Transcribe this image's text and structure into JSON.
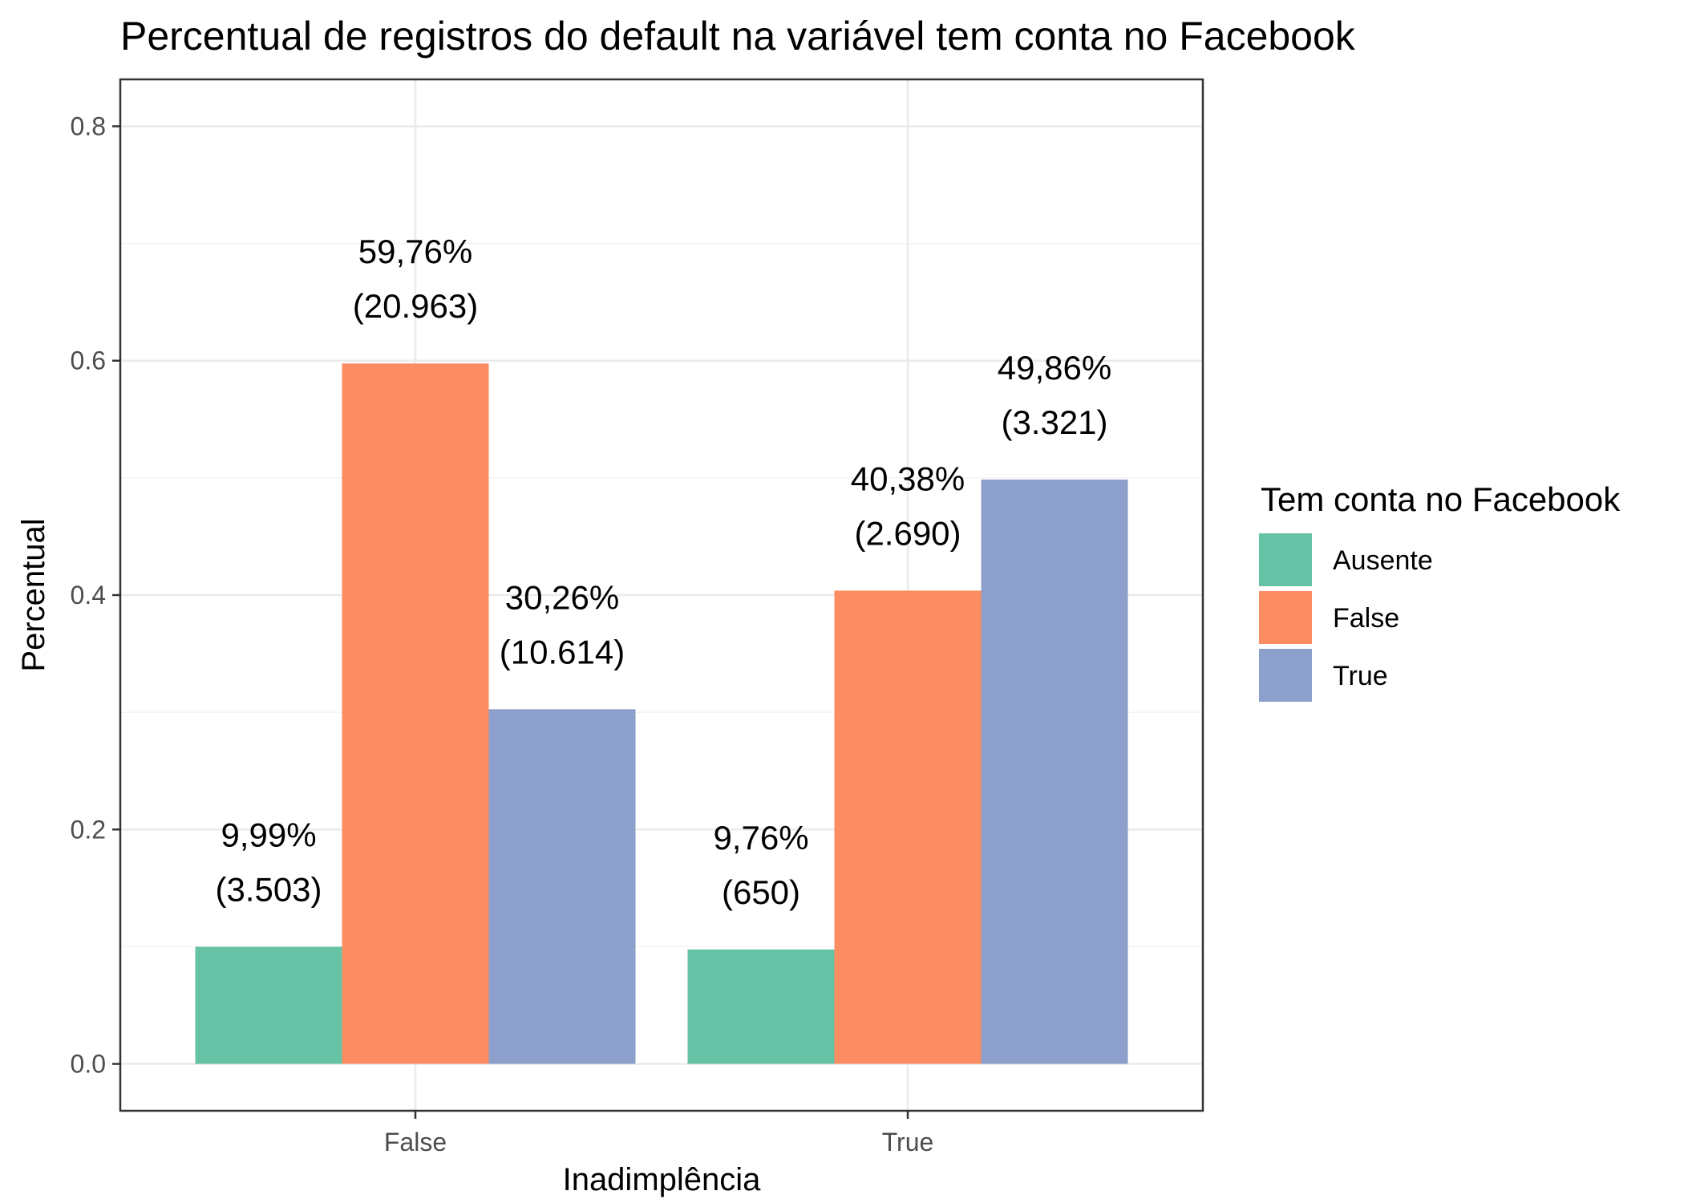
{
  "chart_data": {
    "type": "bar",
    "title": "Percentual de registros do default na variável tem conta no Facebook",
    "xlabel": "Inadimplência",
    "ylabel": "Percentual",
    "categories": [
      "False",
      "True"
    ],
    "ylim": [
      -0.04,
      0.84
    ],
    "yticks": [
      0.0,
      0.2,
      0.4,
      0.6,
      0.8
    ],
    "ytick_labels": [
      "0.0",
      "0.2",
      "0.4",
      "0.6",
      "0.8"
    ],
    "grid": true,
    "legend": {
      "title": "Tem conta no Facebook",
      "position": "right"
    },
    "series": [
      {
        "name": "Ausente",
        "color": "#66C2A5",
        "values": [
          0.0999,
          0.0976
        ],
        "labels": [
          [
            "9,99%",
            "(3.503)"
          ],
          [
            "9,76%",
            "(650)"
          ]
        ]
      },
      {
        "name": "False",
        "color": "#FC8D62",
        "values": [
          0.5976,
          0.4038
        ],
        "labels": [
          [
            "59,76%",
            "(20.963)"
          ],
          [
            "40,38%",
            "(2.690)"
          ]
        ]
      },
      {
        "name": "True",
        "color": "#8DA0CB",
        "values": [
          0.3026,
          0.4986
        ],
        "labels": [
          [
            "30,26%",
            "(10.614)"
          ],
          [
            "49,86%",
            "(3.321)"
          ]
        ]
      }
    ]
  }
}
